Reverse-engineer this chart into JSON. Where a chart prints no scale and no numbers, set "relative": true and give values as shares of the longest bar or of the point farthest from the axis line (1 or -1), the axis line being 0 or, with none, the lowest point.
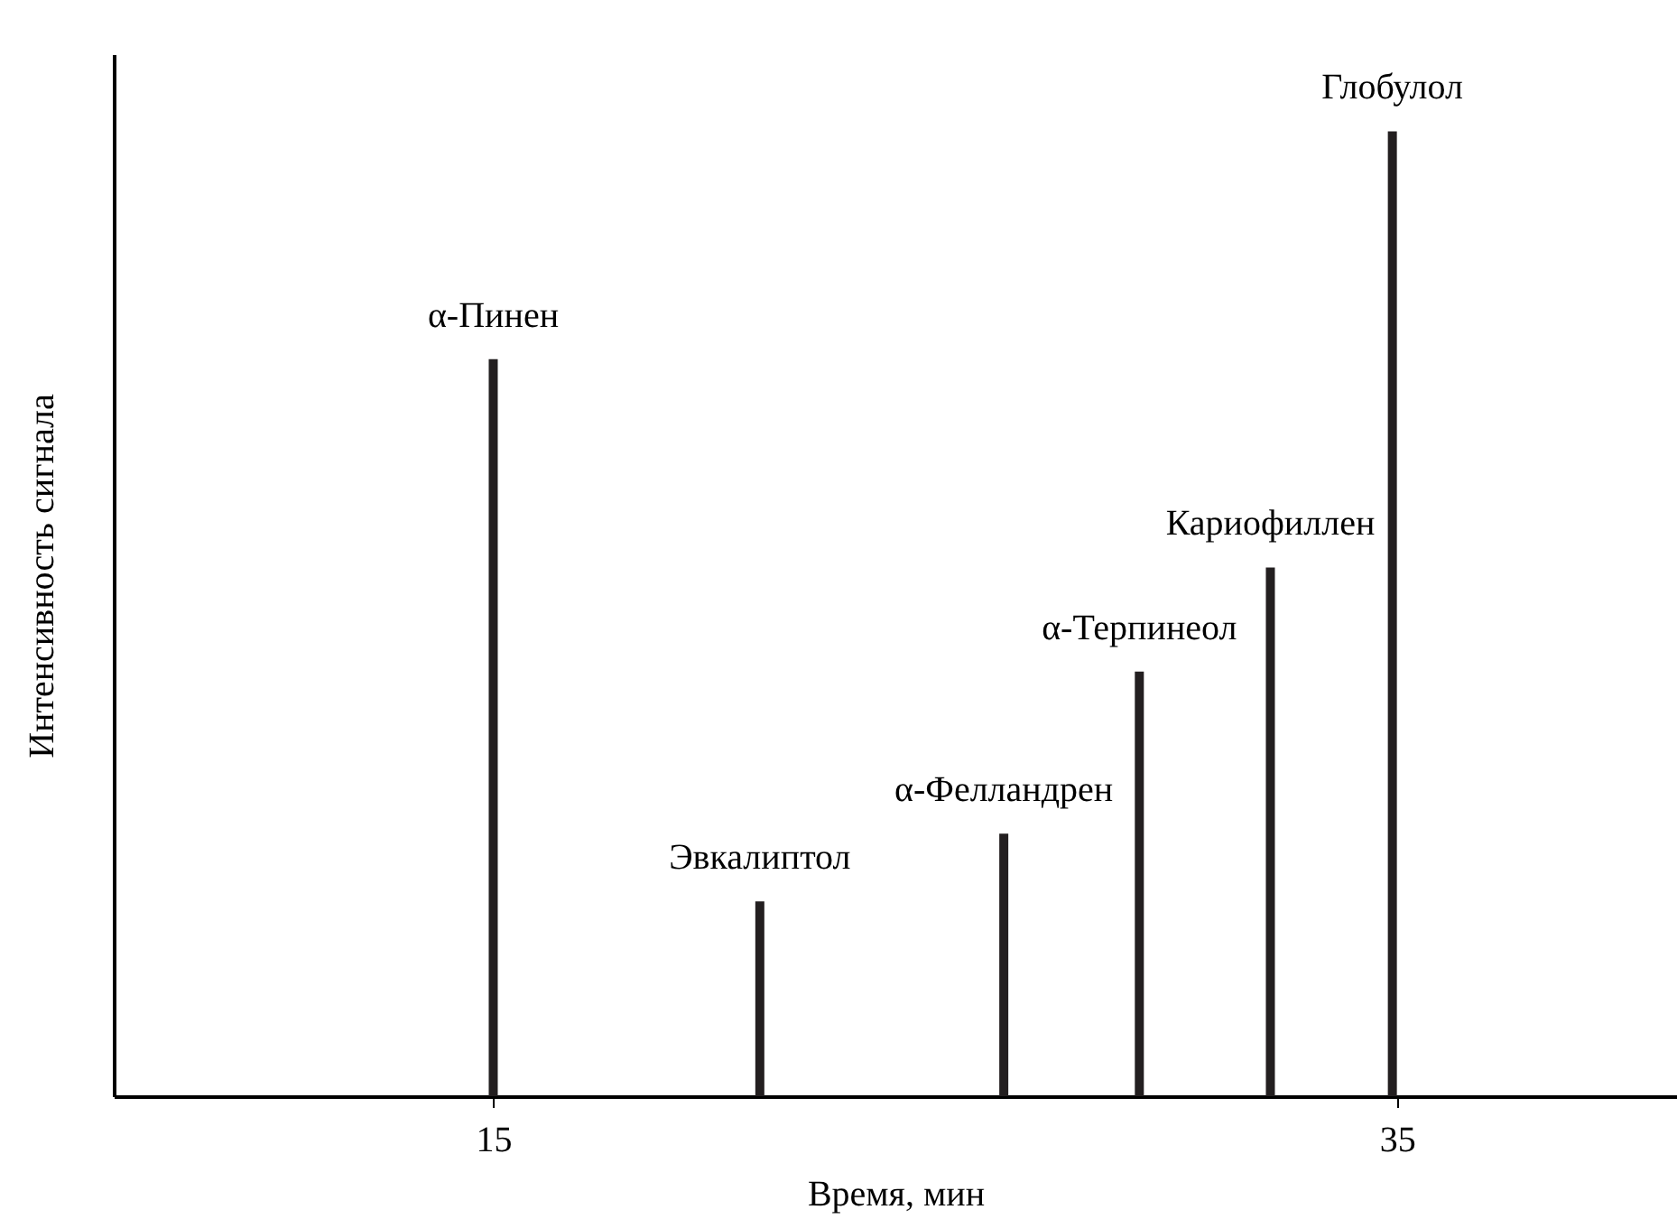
{
  "chart_data": {
    "type": "bar",
    "relative": true,
    "xlabel": "Время, мин",
    "ylabel": "Интенсивность сигнала",
    "x": [
      15,
      20.9,
      26.3,
      29.3,
      32.2,
      34.9
    ],
    "values": [
      0.764,
      0.202,
      0.272,
      0.44,
      0.548,
      1
    ],
    "color": "#231f20",
    "xlim": [
      6.8,
      41
    ],
    "xticks": [
      15,
      35
    ],
    "grid": false,
    "annotations": [
      {
        "text": "α-Пинен",
        "x": 15,
        "y": 0.764
      },
      {
        "text": "Эвкалиптол",
        "x": 20.9,
        "y": 0.202
      },
      {
        "text": "α-Фелландрен",
        "x": 26.3,
        "y": 0.272
      },
      {
        "text": "α-Терпинеол",
        "x": 29.3,
        "y": 0.44
      },
      {
        "text": "Кариофиллен",
        "x": 32.2,
        "y": 0.548
      },
      {
        "text": "Глобулол",
        "x": 34.9,
        "y": 1
      }
    ]
  }
}
